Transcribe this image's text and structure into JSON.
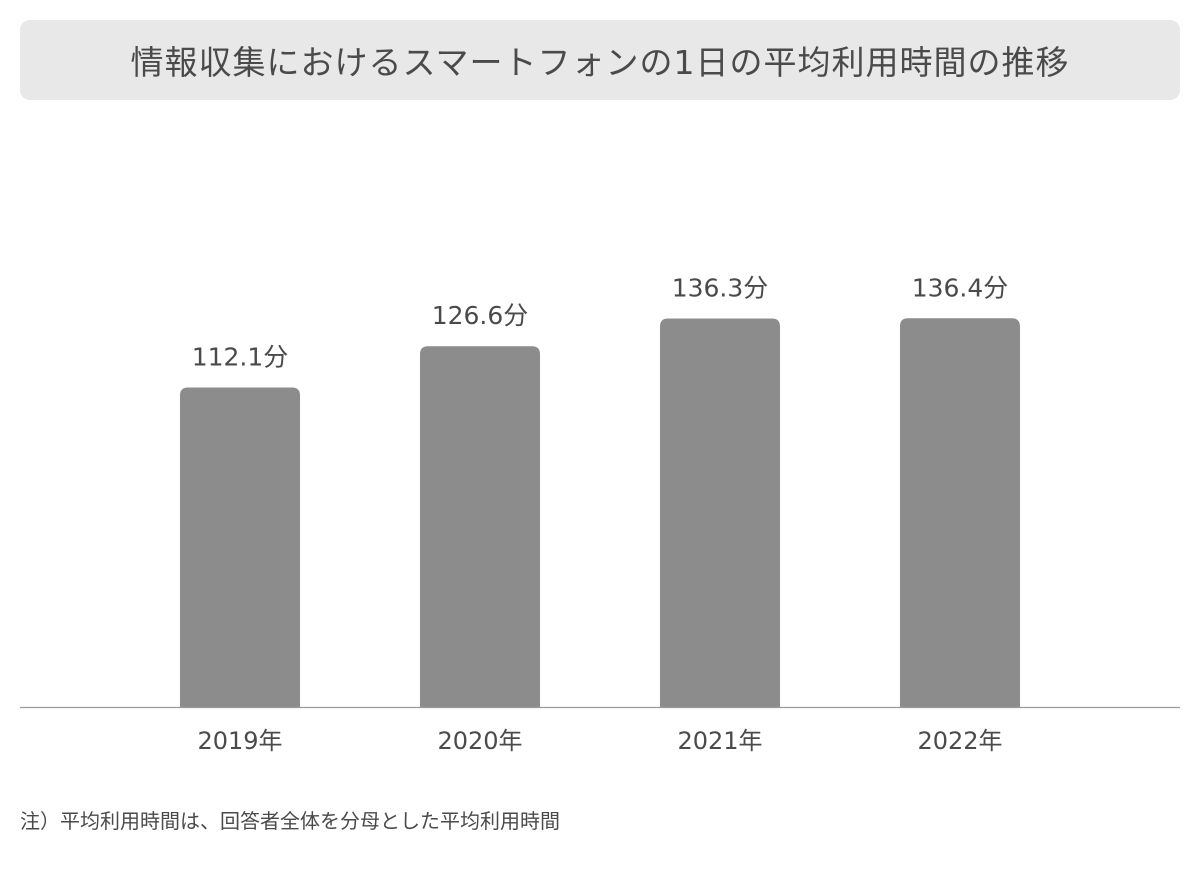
{
  "chart_data": {
    "type": "bar",
    "title": "情報収集におけるスマートフォンの1日の平均利用時間の推移",
    "categories": [
      "2019年",
      "2020年",
      "2021年",
      "2022年"
    ],
    "values": [
      112.1,
      126.6,
      136.3,
      136.4
    ],
    "value_labels": [
      "112.1分",
      "126.6分",
      "136.3分",
      "136.4分"
    ],
    "unit": "分",
    "xlabel": "",
    "ylabel": "",
    "ylim": [
      0,
      240
    ],
    "grid": false,
    "legend": "none",
    "bar_color": "#8c8c8c",
    "axis_color": "#9a9a9a",
    "text_color": "#4a4a4a",
    "title_bg_color": "#e8e8e8"
  },
  "footnote": "注）平均利用時間は、回答者全体を分母とした平均利用時間"
}
